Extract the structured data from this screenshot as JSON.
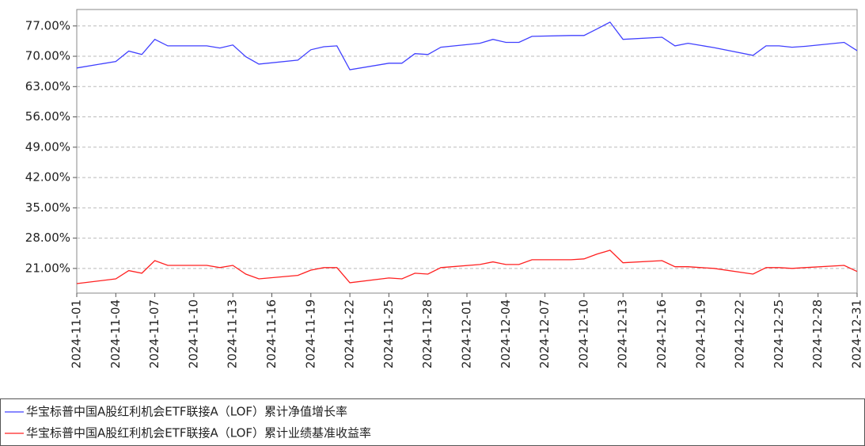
{
  "chart_data": {
    "type": "line",
    "x": [
      "2024-11-01",
      "2024-11-04",
      "2024-11-05",
      "2024-11-06",
      "2024-11-07",
      "2024-11-08",
      "2024-11-11",
      "2024-11-12",
      "2024-11-13",
      "2024-11-14",
      "2024-11-15",
      "2024-11-18",
      "2024-11-19",
      "2024-11-20",
      "2024-11-21",
      "2024-11-22",
      "2024-11-25",
      "2024-11-26",
      "2024-11-27",
      "2024-11-28",
      "2024-11-29",
      "2024-12-02",
      "2024-12-03",
      "2024-12-04",
      "2024-12-05",
      "2024-12-06",
      "2024-12-09",
      "2024-12-10",
      "2024-12-11",
      "2024-12-12",
      "2024-12-13",
      "2024-12-16",
      "2024-12-17",
      "2024-12-18",
      "2024-12-19",
      "2024-12-20",
      "2024-12-23",
      "2024-12-24",
      "2024-12-25",
      "2024-12-26",
      "2024-12-27",
      "2024-12-30",
      "2024-12-31"
    ],
    "series": [
      {
        "name": "华宝标普中国A股红利机会ETF联接A（LOF）累计净值增长率",
        "color": "#4040ff",
        "values": [
          67.3,
          68.8,
          71.2,
          70.4,
          73.9,
          72.4,
          72.4,
          71.9,
          72.6,
          69.9,
          68.2,
          69.1,
          71.5,
          72.2,
          72.4,
          66.9,
          68.4,
          68.4,
          70.6,
          70.4,
          72.1,
          73.0,
          73.9,
          73.2,
          73.2,
          74.6,
          74.8,
          74.8,
          76.3,
          77.9,
          73.9,
          74.4,
          72.4,
          73.0,
          72.5,
          72.0,
          70.2,
          72.4,
          72.4,
          72.1,
          72.3,
          73.2,
          71.3
        ]
      },
      {
        "name": "华宝标普中国A股红利机会ETF联接A（LOF）累计业绩基准收益率",
        "color": "#ff2020",
        "values": [
          17.5,
          18.6,
          20.5,
          19.9,
          22.8,
          21.7,
          21.7,
          21.2,
          21.7,
          19.7,
          18.6,
          19.4,
          20.6,
          21.2,
          21.2,
          17.7,
          18.8,
          18.6,
          19.9,
          19.7,
          21.2,
          21.9,
          22.5,
          21.9,
          21.9,
          23.0,
          23.0,
          23.2,
          24.3,
          25.2,
          22.3,
          22.8,
          21.4,
          21.4,
          21.2,
          21.0,
          19.7,
          21.2,
          21.2,
          21.0,
          21.2,
          21.7,
          20.3
        ]
      }
    ],
    "xlim": [
      "2024-11-01",
      "2024-12-31"
    ],
    "xticks": [
      "2024-11-01",
      "2024-11-04",
      "2024-11-07",
      "2024-11-10",
      "2024-11-13",
      "2024-11-16",
      "2024-11-19",
      "2024-11-22",
      "2024-11-25",
      "2024-11-28",
      "2024-12-01",
      "2024-12-04",
      "2024-12-07",
      "2024-12-10",
      "2024-12-13",
      "2024-12-16",
      "2024-12-19",
      "2024-12-22",
      "2024-12-25",
      "2024-12-28",
      "2024-12-31"
    ],
    "ylim": [
      15.3,
      80.8
    ],
    "yticks": [
      {
        "value": 21,
        "label": "21.00%"
      },
      {
        "value": 28,
        "label": "28.00%"
      },
      {
        "value": 35,
        "label": "35.00%"
      },
      {
        "value": 42,
        "label": "42.00%"
      },
      {
        "value": 49,
        "label": "49.00%"
      },
      {
        "value": 56,
        "label": "56.00%"
      },
      {
        "value": 63,
        "label": "63.00%"
      },
      {
        "value": 70,
        "label": "70.00%"
      },
      {
        "value": 77,
        "label": "77.00%"
      }
    ],
    "grid": true,
    "legend": "bottom"
  }
}
